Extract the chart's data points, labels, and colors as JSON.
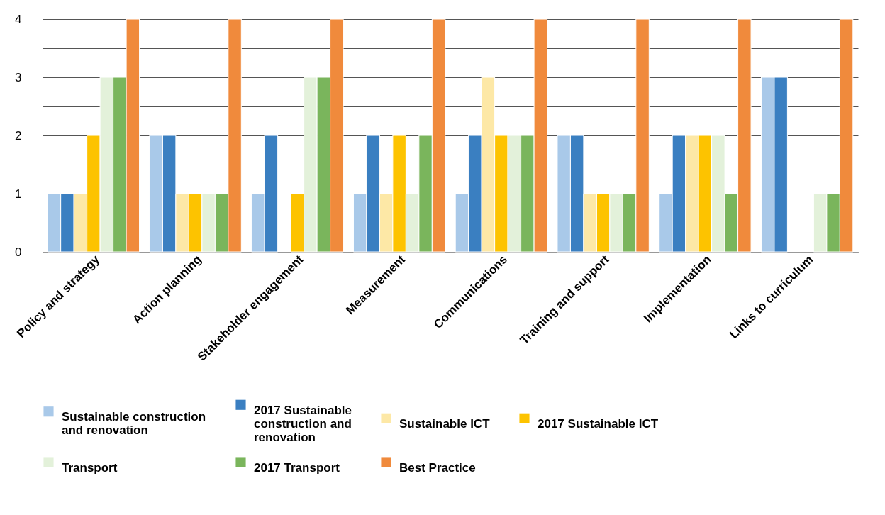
{
  "chart_data": {
    "type": "bar",
    "categories": [
      "Policy and strategy",
      "Action planning",
      "Stakeholder engagement",
      "Measurement",
      "Communications",
      "Training and support",
      "Implementation",
      "Links to curriculum"
    ],
    "series": [
      {
        "name": "Sustainable construction and renovation",
        "color": "#a9c9e9",
        "values": [
          1,
          2,
          1,
          1,
          1,
          2,
          1,
          3
        ]
      },
      {
        "name": "2017 Sustainable construction and renovation",
        "color": "#3a7fc1",
        "values": [
          1,
          2,
          2,
          2,
          2,
          2,
          2,
          3
        ]
      },
      {
        "name": "Sustainable ICT",
        "color": "#fde8a6",
        "values": [
          1,
          1,
          null,
          1,
          3,
          1,
          2,
          null
        ]
      },
      {
        "name": "2017 Sustainable ICT",
        "color": "#fdc300",
        "values": [
          2,
          1,
          1,
          2,
          2,
          1,
          2,
          null
        ]
      },
      {
        "name": "Transport",
        "color": "#e3f1da",
        "values": [
          3,
          1,
          3,
          1,
          2,
          1,
          2,
          1
        ]
      },
      {
        "name": "2017 Transport",
        "color": "#7ab55c",
        "values": [
          3,
          1,
          3,
          2,
          2,
          1,
          1,
          1
        ]
      },
      {
        "name": "Best Practice",
        "color": "#f08a3c",
        "values": [
          4,
          4,
          4,
          4,
          4,
          4,
          4,
          4
        ]
      }
    ],
    "ylim": [
      0,
      4
    ],
    "yticks": [
      0,
      {
        "value": 0.5,
        "label": null
      },
      1,
      {
        "value": 1.5,
        "label": null
      },
      2,
      {
        "value": 2.5,
        "label": null
      },
      3,
      {
        "value": 3.5,
        "label": null
      },
      4
    ],
    "grid": "y",
    "legend": "bottom"
  }
}
